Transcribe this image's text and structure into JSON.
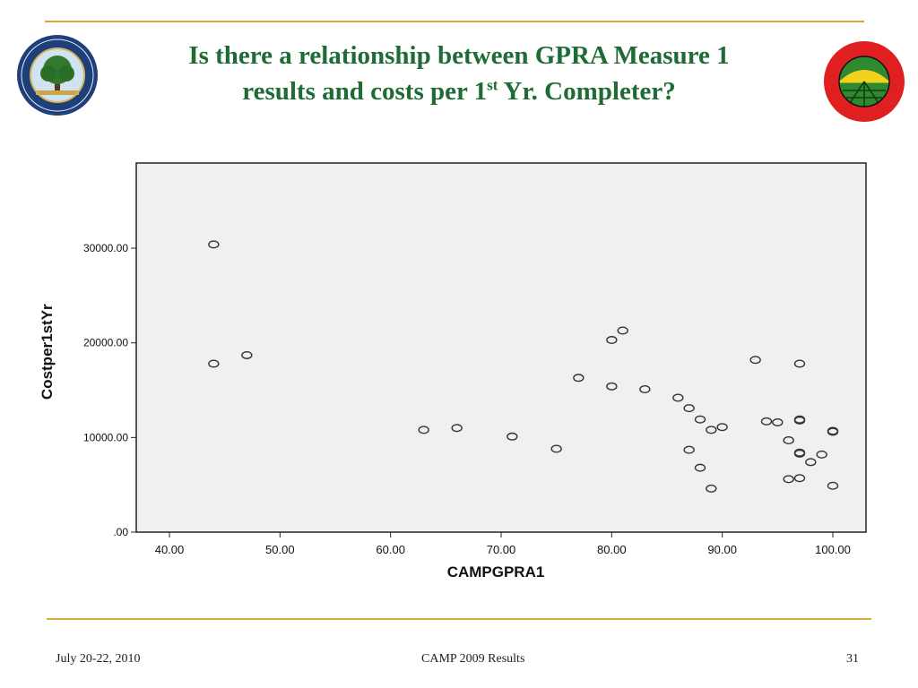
{
  "slide": {
    "title_line1": "Is there a relationship between GPRA Measure 1",
    "title_line2_a": "results and costs per 1",
    "title_line2_sup": "st",
    "title_line2_b": " Yr. Completer?",
    "left_logo_text": "DEPARTMENT OF EDUCATION · UNITED STATES OF AMERICA",
    "right_logo_text": "MIGRANT EDUCATION · HARVEST OF HOPE",
    "footer_date": "July 20-22, 2010",
    "footer_center": "CAMP 2009 Results",
    "page_number": "31"
  },
  "colors": {
    "title": "#1f6b35",
    "rule": "#d9a73a",
    "plot_background": "#f0f0f0",
    "marker": "#333333"
  },
  "chart_data": {
    "type": "scatter",
    "xlabel": "CAMPGPRA1",
    "ylabel": "Costper1stYr",
    "xlim": [
      37,
      103
    ],
    "ylim": [
      0,
      39000
    ],
    "x_ticks": [
      40,
      50,
      60,
      70,
      80,
      90,
      100
    ],
    "x_tick_labels": [
      "40.00",
      "50.00",
      "60.00",
      "70.00",
      "80.00",
      "90.00",
      "100.00"
    ],
    "y_ticks": [
      0,
      10000,
      20000,
      30000
    ],
    "y_tick_labels": [
      ".00",
      "10000.00",
      "20000.00",
      "30000.00"
    ],
    "grid": false,
    "marker": "open-circle",
    "points": [
      {
        "x": 44,
        "y": 30400
      },
      {
        "x": 44,
        "y": 17800
      },
      {
        "x": 47,
        "y": 18700
      },
      {
        "x": 63,
        "y": 10800
      },
      {
        "x": 66,
        "y": 11000
      },
      {
        "x": 71,
        "y": 10100
      },
      {
        "x": 75,
        "y": 8800
      },
      {
        "x": 77,
        "y": 16300
      },
      {
        "x": 80,
        "y": 20300
      },
      {
        "x": 81,
        "y": 21300
      },
      {
        "x": 80,
        "y": 15400
      },
      {
        "x": 83,
        "y": 15100
      },
      {
        "x": 86,
        "y": 14200
      },
      {
        "x": 87,
        "y": 13100
      },
      {
        "x": 88,
        "y": 11900
      },
      {
        "x": 89,
        "y": 10800
      },
      {
        "x": 90,
        "y": 11100
      },
      {
        "x": 87,
        "y": 8700
      },
      {
        "x": 88,
        "y": 6800
      },
      {
        "x": 89,
        "y": 4600
      },
      {
        "x": 93,
        "y": 18200
      },
      {
        "x": 94,
        "y": 11700
      },
      {
        "x": 95,
        "y": 11600
      },
      {
        "x": 96,
        "y": 9700
      },
      {
        "x": 96,
        "y": 5600
      },
      {
        "x": 97,
        "y": 17800
      },
      {
        "x": 97,
        "y": 11900
      },
      {
        "x": 97,
        "y": 11800
      },
      {
        "x": 97,
        "y": 8400
      },
      {
        "x": 97,
        "y": 8300
      },
      {
        "x": 97,
        "y": 5700
      },
      {
        "x": 98,
        "y": 7400
      },
      {
        "x": 99,
        "y": 8200
      },
      {
        "x": 100,
        "y": 10700
      },
      {
        "x": 100,
        "y": 10600
      },
      {
        "x": 100,
        "y": 4900
      }
    ]
  }
}
